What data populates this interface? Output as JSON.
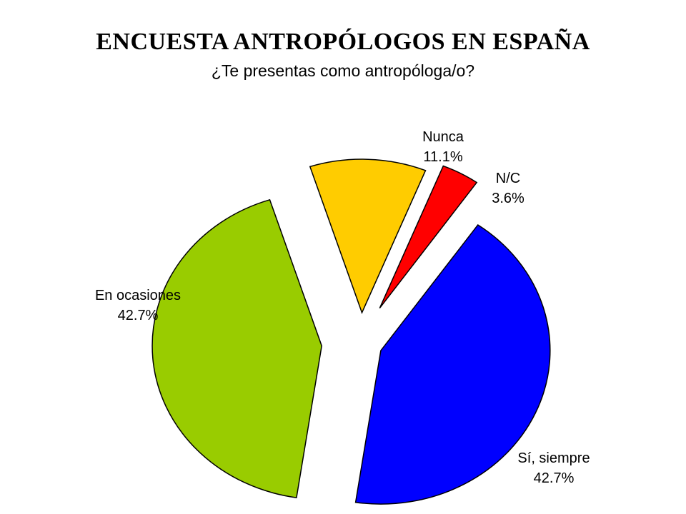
{
  "chart_data": {
    "type": "pie",
    "title": "ENCUESTA ANTROPÓLOGOS EN ESPAÑA",
    "subtitle": "¿Te presentas como antropóloga/o?",
    "exploded": true,
    "slices": [
      {
        "label": "Sí, siempre",
        "value": 42.7,
        "display": "42.7%",
        "color": "#0000ff"
      },
      {
        "label": "En ocasiones",
        "value": 42.7,
        "display": "42.7%",
        "color": "#99cc00"
      },
      {
        "label": "Nunca",
        "value": 11.1,
        "display": "11.1%",
        "color": "#ffcc00"
      },
      {
        "label": "N/C",
        "value": 3.6,
        "display": "3.6%",
        "color": "#ff0000"
      }
    ]
  }
}
